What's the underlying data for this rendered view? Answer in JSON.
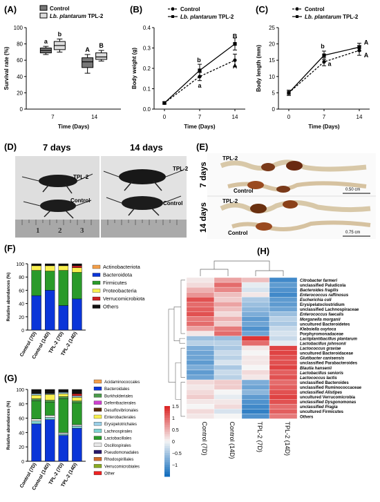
{
  "panels": {
    "A": {
      "label": "(A)",
      "ylabel": "Survival rate (%)",
      "xlabel": "Time (Days)"
    },
    "B": {
      "label": "(B)",
      "ylabel": "Body weight (g)",
      "xlabel": "Time (Days)"
    },
    "C": {
      "label": "(C)",
      "ylabel": "Body length (mm)",
      "xlabel": "Time (Days)"
    },
    "D": {
      "label": "(D)",
      "day7": "7 days",
      "day14": "14 days",
      "tpl2": "TPL-2",
      "control": "Control",
      "ruler": [
        "1",
        "2",
        "3"
      ]
    },
    "E": {
      "label": "(E)",
      "day7": "7 days",
      "day14": "14 days",
      "tpl2": "TPL-2",
      "control": "Control",
      "scale7": "0.50 cm",
      "scale14": "0.75 cm"
    },
    "F": {
      "label": "(F)",
      "ylabel": "Relative abundances (%)"
    },
    "G": {
      "label": "(G)",
      "ylabel": "Relative abundances (%)"
    },
    "H": {
      "label": "(H)"
    }
  },
  "legend": {
    "control": "Control",
    "tpl2_italic": "Lb. plantarum",
    "tpl2_rest": " TPL-2"
  },
  "chart_data": [
    {
      "id": "A",
      "type": "box",
      "categories": [
        "7",
        "14"
      ],
      "ylim": [
        0,
        100
      ],
      "yticks": [
        0,
        20,
        40,
        60,
        80,
        100
      ],
      "series": [
        {
          "name": "Control",
          "color": "#777777",
          "boxes": [
            {
              "min": 67,
              "q1": 69,
              "median": 72,
              "q3": 75,
              "max": 77,
              "letter": "a"
            },
            {
              "min": 44,
              "q1": 51,
              "median": 58,
              "q3": 63,
              "max": 67,
              "letter": "A"
            }
          ]
        },
        {
          "name": "Lb. plantarum TPL-2",
          "color": "#dddddd",
          "boxes": [
            {
              "min": 70,
              "q1": 73,
              "median": 78,
              "q3": 83,
              "max": 86,
              "letter": "b"
            },
            {
              "min": 59,
              "q1": 61,
              "median": 64,
              "q3": 69,
              "max": 72,
              "letter": "B"
            }
          ]
        }
      ]
    },
    {
      "id": "B",
      "type": "line",
      "x": [
        0,
        7,
        14
      ],
      "ylim": [
        0,
        0.4
      ],
      "yticks": [
        "0.0",
        "0.1",
        "0.2",
        "0.3",
        "0.4"
      ],
      "xticks": [
        "0",
        "7",
        "14"
      ],
      "series": [
        {
          "name": "Control",
          "values": [
            0.03,
            0.16,
            0.24
          ],
          "err": [
            0.005,
            0.02,
            0.03
          ],
          "letters": [
            "",
            "a",
            "A"
          ]
        },
        {
          "name": "Lb. plantarum TPL-2",
          "values": [
            0.03,
            0.19,
            0.32
          ],
          "err": [
            0.005,
            0.03,
            0.03
          ],
          "letters": [
            "",
            "b",
            "B"
          ]
        }
      ]
    },
    {
      "id": "C",
      "type": "line",
      "x": [
        0,
        7,
        14
      ],
      "ylim": [
        0,
        25
      ],
      "yticks": [
        "0",
        "5",
        "10",
        "15",
        "20",
        "25"
      ],
      "xticks": [
        "0",
        "7",
        "14"
      ],
      "series": [
        {
          "name": "Control",
          "values": [
            5,
            14.5,
            18
          ],
          "err": [
            0.8,
            1.2,
            1.5
          ],
          "letters": [
            "",
            "a",
            "A"
          ]
        },
        {
          "name": "Lb. plantarum TPL-2",
          "values": [
            5,
            16.5,
            19
          ],
          "err": [
            0.8,
            1.3,
            1.2
          ],
          "letters": [
            "",
            "b",
            "A"
          ]
        }
      ]
    },
    {
      "id": "F",
      "type": "stacked-bar",
      "categories": [
        "Control (7D)",
        "Control (14D)",
        "TPL-2 (7D)",
        "TPL-2 (14D)"
      ],
      "ylim": [
        0,
        100
      ],
      "yticks": [
        0,
        20,
        40,
        60,
        80,
        100
      ],
      "series": [
        {
          "name": "Bacteroidota",
          "color": "#0a35d8",
          "values": [
            52,
            60,
            37,
            47
          ]
        },
        {
          "name": "Firmicutes",
          "color": "#2a9a2a",
          "values": [
            38,
            29,
            53,
            40
          ]
        },
        {
          "name": "Proteobacteria",
          "color": "#f8f050",
          "values": [
            7,
            8,
            7,
            7
          ]
        },
        {
          "name": "Verrucomicrobiota",
          "color": "#cc2222",
          "values": [
            0,
            0,
            0,
            3
          ]
        },
        {
          "name": "Actinobacteriota",
          "color": "#f4a04a",
          "values": [
            0,
            0,
            0,
            0
          ]
        },
        {
          "name": "Others",
          "color": "#111111",
          "values": [
            3,
            3,
            3,
            3
          ]
        }
      ],
      "legend": [
        {
          "name": "Actinobacteriota",
          "color": "#f4a04a"
        },
        {
          "name": "Bacteroidota",
          "color": "#0a35d8"
        },
        {
          "name": "Firmicutes",
          "color": "#2a9a2a"
        },
        {
          "name": "Proteobacteria",
          "color": "#f8f050"
        },
        {
          "name": "Verrucomicrobiota",
          "color": "#cc2222"
        },
        {
          "name": "Others",
          "color": "#111111"
        }
      ]
    },
    {
      "id": "G",
      "type": "stacked-bar",
      "categories": [
        "Control (7D)",
        "Control (14D)",
        "TPL-2 (7D)",
        "TPL-2 (14D)"
      ],
      "ylim": [
        0,
        100
      ],
      "yticks": [
        0,
        20,
        40,
        60,
        80,
        100
      ],
      "series": [
        {
          "name": "Bacteroidales",
          "color": "#0a35d8",
          "values": [
            52,
            58,
            36,
            46
          ]
        },
        {
          "name": "Lachnospirales",
          "color": "#7fd0d0",
          "values": [
            4,
            3,
            2,
            3
          ]
        },
        {
          "name": "Oscillospirales",
          "color": "#e8e8e8",
          "values": [
            3,
            3,
            2,
            2
          ]
        },
        {
          "name": "Lactobacillales",
          "color": "#2a9a2a",
          "values": [
            25,
            18,
            47,
            30
          ]
        },
        {
          "name": "Burkholderiales",
          "color": "#4a9a4a",
          "values": [
            3,
            3,
            3,
            3
          ]
        },
        {
          "name": "Enterobacterales",
          "color": "#f8f050",
          "values": [
            5,
            8,
            4,
            5
          ]
        },
        {
          "name": "Erysipelotrichales",
          "color": "#9acfe6",
          "values": [
            2,
            1,
            2,
            2
          ]
        },
        {
          "name": "Verrucomicrobiales",
          "color": "#cc2222",
          "values": [
            0,
            0,
            0,
            3
          ]
        },
        {
          "name": "Other",
          "color": "#111111",
          "values": [
            6,
            6,
            4,
            6
          ]
        }
      ],
      "legend": [
        {
          "name": "Acidaminococcales",
          "color": "#f4a04a"
        },
        {
          "name": "Bacteroidales",
          "color": "#0a35d8"
        },
        {
          "name": "Burkholderiales",
          "color": "#4a9a4a"
        },
        {
          "name": "Deferribacterales",
          "color": "#d040d0"
        },
        {
          "name": "Desulfovibrionales",
          "color": "#5a2a0a"
        },
        {
          "name": "Enterobacterales",
          "color": "#f8f050"
        },
        {
          "name": "Erysipelotrichales",
          "color": "#9acfe6"
        },
        {
          "name": "Lachnospirales",
          "color": "#7fd0d0"
        },
        {
          "name": "Lactobacillales",
          "color": "#2a9a2a"
        },
        {
          "name": "Oscillospirales",
          "color": "#e8e8e8"
        },
        {
          "name": "Pseudomonadales",
          "color": "#2a1a6a"
        },
        {
          "name": "Rhodospirillales",
          "color": "#d06a2a"
        },
        {
          "name": "Verrucomicrobiales",
          "color": "#88aa22"
        },
        {
          "name": "Other",
          "color": "#ee2222"
        }
      ]
    },
    {
      "id": "H",
      "type": "heatmap",
      "columns": [
        "Control (7D)",
        "Control (14D)",
        "TPL-2 (7D)",
        "TPL-2 (14D)"
      ],
      "colorbar": {
        "min": -1.5,
        "max": 1.5,
        "ticks": [
          "1.5",
          "1",
          "0.5",
          "0",
          "−0.5",
          "−1"
        ]
      },
      "rows": [
        {
          "name": "Citrobacter farmeri",
          "italic": true,
          "values": [
            0.1,
            0.6,
            0.4,
            -1.2
          ]
        },
        {
          "name": "unclassified Paludicola",
          "italic": false,
          "values": [
            0.2,
            1.0,
            -0.1,
            -1.0
          ]
        },
        {
          "name": "Bacteroides fragilis",
          "italic": true,
          "values": [
            0.5,
            0.8,
            -0.2,
            -1.1
          ]
        },
        {
          "name": "Enterococcus raffinosus",
          "italic": true,
          "values": [
            0.7,
            0.4,
            0.1,
            -1.2
          ]
        },
        {
          "name": "Escherichia coli",
          "italic": true,
          "values": [
            1.2,
            0.3,
            -0.5,
            -1.0
          ]
        },
        {
          "name": "Erysipelatoclostridium",
          "italic": false,
          "values": [
            1.0,
            0.6,
            -0.6,
            -1.0
          ]
        },
        {
          "name": "unclassified Lachnospiraceae",
          "italic": false,
          "values": [
            1.1,
            0.4,
            -0.7,
            -0.9
          ]
        },
        {
          "name": "Enterococcus faecalis",
          "italic": true,
          "values": [
            1.2,
            0.2,
            -0.8,
            -0.6
          ]
        },
        {
          "name": "Morganella morganii",
          "italic": true,
          "values": [
            0.9,
            0.5,
            -1.0,
            -0.4
          ]
        },
        {
          "name": "uncultured Bacteroidetes",
          "italic": false,
          "values": [
            1.0,
            0.3,
            -0.9,
            -0.5
          ]
        },
        {
          "name": "Klebsiella oxytoca",
          "italic": true,
          "values": [
            0.6,
            0.9,
            -1.1,
            -0.3
          ]
        },
        {
          "name": "Porphyromonadaceae",
          "italic": false,
          "values": [
            0.1,
            1.0,
            -0.9,
            -0.2
          ]
        },
        {
          "name": "Lactiplantibacillus plantarum",
          "italic": true,
          "values": [
            -0.6,
            -0.6,
            1.4,
            -0.3
          ]
        },
        {
          "name": "Lactobacillus johnsonii",
          "italic": true,
          "values": [
            -0.4,
            -0.4,
            1.0,
            -0.1
          ]
        },
        {
          "name": "Lactococcus graviae",
          "italic": true,
          "values": [
            -0.8,
            -0.5,
            0.1,
            1.3
          ]
        },
        {
          "name": "uncultured Bacteroidaceae",
          "italic": false,
          "values": [
            -0.9,
            -0.3,
            0.0,
            1.3
          ]
        },
        {
          "name": "Glutibacter canisensis",
          "italic": true,
          "values": [
            -0.9,
            -0.4,
            0.1,
            1.2
          ]
        },
        {
          "name": "unclassified Parabacteroides",
          "italic": false,
          "values": [
            -1.0,
            -0.2,
            0.1,
            1.2
          ]
        },
        {
          "name": "Blautia hansenii",
          "italic": true,
          "values": [
            -0.8,
            -0.5,
            0.0,
            1.3
          ]
        },
        {
          "name": "Lactobacillus senioris",
          "italic": true,
          "values": [
            -1.0,
            -0.3,
            0.2,
            1.1
          ]
        },
        {
          "name": "Lactococcus lactis",
          "italic": true,
          "values": [
            -0.9,
            -0.4,
            0.1,
            1.2
          ]
        },
        {
          "name": "unclassified Bacteroides",
          "italic": false,
          "values": [
            0.2,
            0.3,
            -0.8,
            1.0
          ]
        },
        {
          "name": "unclassified Ruminococcaceae",
          "italic": false,
          "values": [
            0.1,
            0.3,
            -0.9,
            1.1
          ]
        },
        {
          "name": "unclassified Alistipes",
          "italic": true,
          "values": [
            0.2,
            0.0,
            -0.7,
            1.2
          ]
        },
        {
          "name": "uncultured Verrucomicrobia",
          "italic": false,
          "values": [
            0.3,
            -0.1,
            -1.0,
            1.3
          ]
        },
        {
          "name": "unclassified Dysgonomonas",
          "italic": true,
          "values": [
            0.1,
            0.1,
            -1.1,
            1.2
          ]
        },
        {
          "name": "unclassified Pragia",
          "italic": true,
          "values": [
            0.0,
            0.2,
            -1.2,
            1.0
          ]
        },
        {
          "name": "uncultured Firmicutes",
          "italic": false,
          "values": [
            0.2,
            -0.2,
            -1.3,
            1.1
          ]
        },
        {
          "name": "Others",
          "italic": false,
          "values": [
            0.1,
            0.0,
            -1.1,
            0.9
          ]
        }
      ]
    }
  ]
}
